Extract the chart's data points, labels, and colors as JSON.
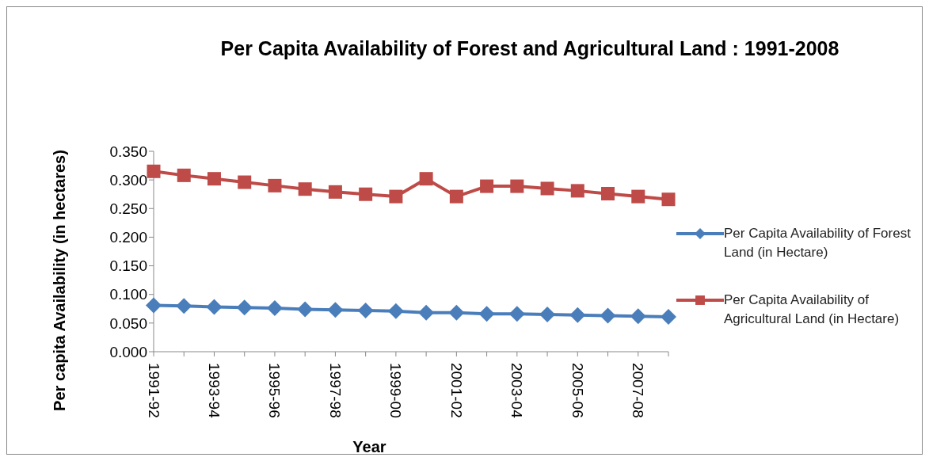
{
  "chart_data": {
    "type": "line",
    "title": "Per Capita Availability of Forest and Agricultural Land : 1991-2008",
    "xlabel": "Year",
    "ylabel": "Per capita Availability (in hectares)",
    "categories": [
      "1991-92",
      null,
      "1993-94",
      null,
      "1995-96",
      null,
      "1997-98",
      null,
      "1999-00",
      null,
      "2001-02",
      null,
      "2003-04",
      null,
      "2005-06",
      null,
      "2007-08",
      null
    ],
    "series": [
      {
        "name": "Per Capita Availability of Forest Land (in Hectare)",
        "color": "#4a7ebb",
        "marker": "diamond",
        "values": [
          0.081,
          0.08,
          0.078,
          0.077,
          0.076,
          0.074,
          0.073,
          0.072,
          0.071,
          0.068,
          0.068,
          0.066,
          0.066,
          0.065,
          0.064,
          0.063,
          0.062,
          0.061
        ]
      },
      {
        "name": "Per Capita Availability of Agricultural Land (in Hectare)",
        "color": "#be4b48",
        "marker": "square",
        "values": [
          0.315,
          0.308,
          0.302,
          0.296,
          0.29,
          0.284,
          0.279,
          0.275,
          0.271,
          0.302,
          0.271,
          0.289,
          0.289,
          0.285,
          0.281,
          0.276,
          0.271,
          0.266
        ]
      }
    ],
    "ylim": [
      0,
      0.35
    ],
    "yticks": [
      {
        "value": 0,
        "label": "0.000"
      },
      {
        "value": 0.05,
        "label": "0.050"
      },
      {
        "value": 0.1,
        "label": "0.100"
      },
      {
        "value": 0.15,
        "label": "0.150"
      },
      {
        "value": 0.2,
        "label": "0.200"
      },
      {
        "value": 0.25,
        "label": "0.250"
      },
      {
        "value": 0.3,
        "label": "0.300"
      },
      {
        "value": 0.35,
        "label": "0.350"
      }
    ],
    "grid": false,
    "legend": "right"
  }
}
